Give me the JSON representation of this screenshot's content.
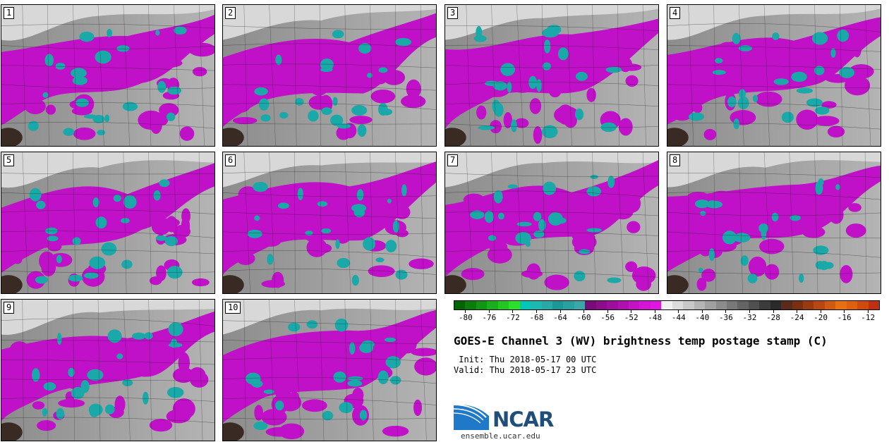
{
  "panels": [
    {
      "label": "1"
    },
    {
      "label": "2"
    },
    {
      "label": "3"
    },
    {
      "label": "4"
    },
    {
      "label": "5"
    },
    {
      "label": "6"
    },
    {
      "label": "7"
    },
    {
      "label": "8"
    },
    {
      "label": "9"
    },
    {
      "label": "10"
    }
  ],
  "colorbar": {
    "ticks": [
      "-80",
      "-76",
      "-72",
      "-68",
      "-64",
      "-60",
      "-56",
      "-52",
      "-48",
      "-44",
      "-40",
      "-36",
      "-32",
      "-28",
      "-24",
      "-20",
      "-16",
      "-12"
    ],
    "colors": [
      "#006400",
      "#0a7d0a",
      "#129612",
      "#1aaf1a",
      "#22c722",
      "#2be02b",
      "#00c8b4",
      "#1bb9b0",
      "#2aa8a8",
      "#1a9898",
      "#2aa0a0",
      "#3aa8a8",
      "#7a0a7a",
      "#8c0c8c",
      "#9e0e9e",
      "#b010b0",
      "#c412c4",
      "#d614d6",
      "#e016e0",
      "#f0f0f0",
      "#dcdcdc",
      "#c8c8c8",
      "#b4b4b4",
      "#a0a0a0",
      "#8c8c8c",
      "#787878",
      "#646464",
      "#505050",
      "#3c3c3c",
      "#2a2a2a",
      "#5a2a1a",
      "#7a3010",
      "#9a3a10",
      "#b84810",
      "#d05a10",
      "#e87010",
      "#e06010",
      "#d04a10",
      "#c03010"
    ]
  },
  "title": "GOES-E Channel 3 (WV) brightness temp postage stamp (C)",
  "init": " Init: Thu 2018-05-17 00 UTC",
  "valid": "Valid: Thu 2018-05-17 23 UTC",
  "logo": {
    "name": "NCAR",
    "url": "ensemble.ucar.edu"
  }
}
